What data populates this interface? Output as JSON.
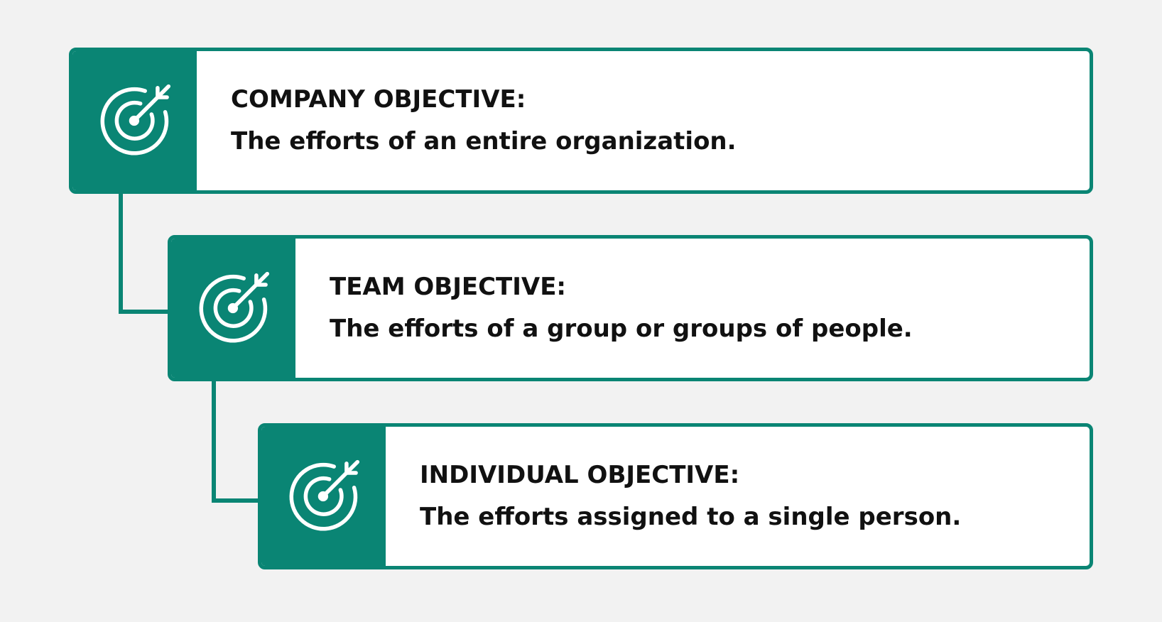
{
  "colors": {
    "accent": "#0a8574",
    "card_background": "#ffffff",
    "page_background": "#f2f2f2",
    "text": "#111111"
  },
  "objectives": [
    {
      "icon": "target-icon",
      "title": "COMPANY OBJECTIVE:",
      "description": "The efforts of an entire organization."
    },
    {
      "icon": "target-icon",
      "title": "TEAM OBJECTIVE:",
      "description": "The efforts of a group or groups of people."
    },
    {
      "icon": "target-icon",
      "title": "INDIVIDUAL OBJECTIVE:",
      "description": "The efforts assigned to a single person."
    }
  ]
}
